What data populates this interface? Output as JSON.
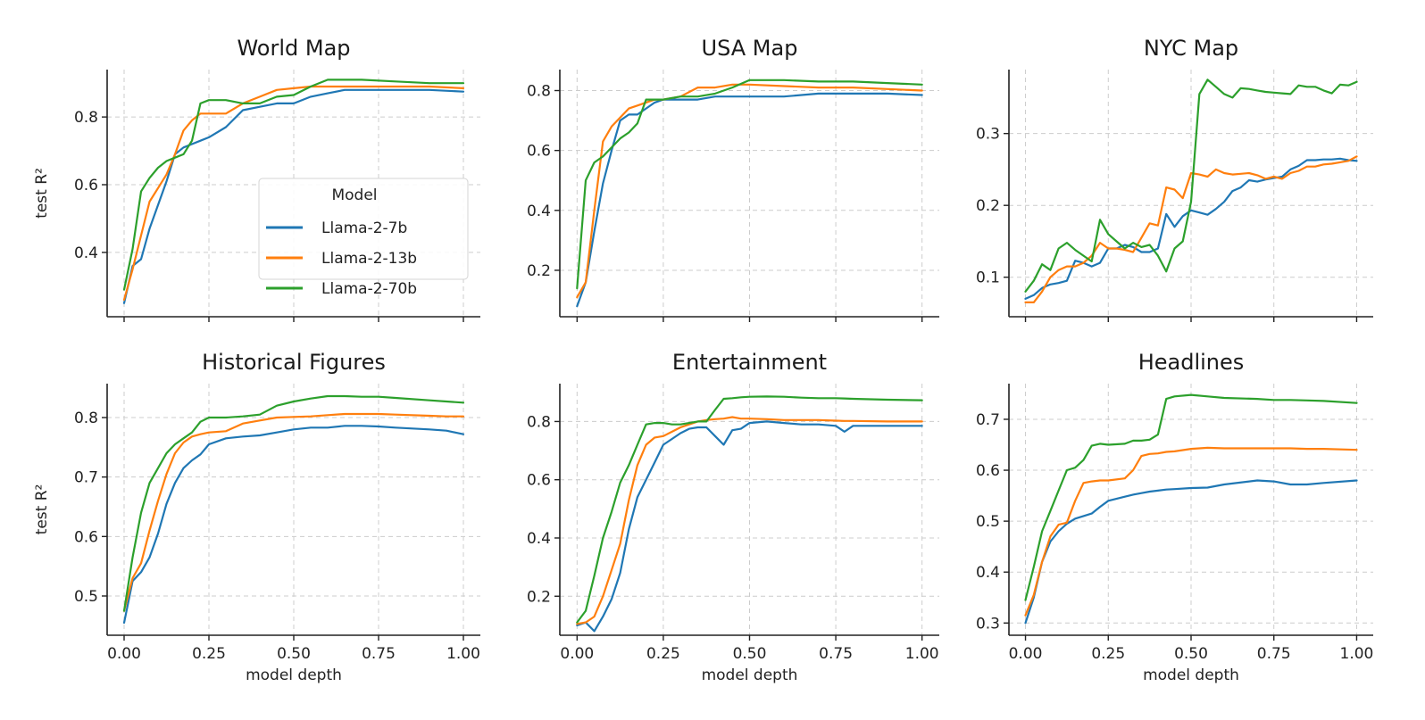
{
  "chart_data": {
    "type": "line",
    "legend": {
      "title": "Model",
      "placement": "lower-right of World Map panel",
      "entries": [
        {
          "name": "Llama-2-7b",
          "color": "#1f77b4"
        },
        {
          "name": "Llama-2-13b",
          "color": "#ff7f0e"
        },
        {
          "name": "Llama-2-70b",
          "color": "#2ca02c"
        }
      ]
    },
    "xlabel": "model depth",
    "ylabel": "test R²",
    "xlim": [
      -0.05,
      1.05
    ],
    "xticks": [
      0.0,
      0.25,
      0.5,
      0.75,
      1.0
    ],
    "xtick_labels": [
      "0.00",
      "0.25",
      "0.50",
      "0.75",
      "1.00"
    ],
    "grid": true,
    "panels": [
      {
        "title": "World Map",
        "ylim": [
          0.21,
          0.94
        ],
        "yticks": [
          0.4,
          0.6,
          0.8
        ],
        "ytick_labels": [
          "0.4",
          "0.6",
          "0.8"
        ],
        "show_ylabel": true,
        "show_xticklabels": false,
        "show_legend": true,
        "x": [
          0.0,
          0.025,
          0.05,
          0.075,
          0.1,
          0.125,
          0.15,
          0.175,
          0.2,
          0.225,
          0.25,
          0.3,
          0.35,
          0.4,
          0.45,
          0.5,
          0.55,
          0.6,
          0.65,
          0.7,
          0.8,
          0.9,
          1.0
        ],
        "series": [
          {
            "name": "Llama-2-7b",
            "values": [
              0.25,
              0.36,
              0.38,
              0.47,
              0.54,
              0.61,
              0.69,
              0.71,
              0.72,
              0.73,
              0.74,
              0.77,
              0.82,
              0.83,
              0.84,
              0.84,
              0.86,
              0.87,
              0.88,
              0.88,
              0.88,
              0.88,
              0.875
            ]
          },
          {
            "name": "Llama-2-13b",
            "values": [
              0.26,
              0.35,
              0.45,
              0.55,
              0.59,
              0.63,
              0.69,
              0.76,
              0.79,
              0.81,
              0.81,
              0.81,
              0.84,
              0.86,
              0.88,
              0.885,
              0.89,
              0.89,
              0.89,
              0.89,
              0.89,
              0.89,
              0.885
            ]
          },
          {
            "name": "Llama-2-70b",
            "values": [
              0.29,
              0.41,
              0.58,
              0.62,
              0.65,
              0.67,
              0.68,
              0.69,
              0.73,
              0.84,
              0.85,
              0.85,
              0.84,
              0.84,
              0.86,
              0.865,
              0.89,
              0.91,
              0.91,
              0.91,
              0.905,
              0.9,
              0.9
            ]
          }
        ]
      },
      {
        "title": "USA Map",
        "ylim": [
          0.045,
          0.87
        ],
        "yticks": [
          0.2,
          0.4,
          0.6,
          0.8
        ],
        "ytick_labels": [
          "0.2",
          "0.4",
          "0.6",
          "0.8"
        ],
        "show_ylabel": false,
        "show_xticklabels": false,
        "show_legend": false,
        "x": [
          0.0,
          0.025,
          0.05,
          0.075,
          0.1,
          0.125,
          0.15,
          0.175,
          0.2,
          0.225,
          0.25,
          0.3,
          0.35,
          0.4,
          0.45,
          0.5,
          0.6,
          0.7,
          0.8,
          0.9,
          1.0
        ],
        "series": [
          {
            "name": "Llama-2-7b",
            "values": [
              0.08,
              0.16,
              0.33,
              0.49,
              0.6,
              0.7,
              0.72,
              0.72,
              0.74,
              0.76,
              0.77,
              0.77,
              0.77,
              0.78,
              0.78,
              0.78,
              0.78,
              0.79,
              0.79,
              0.79,
              0.785
            ]
          },
          {
            "name": "Llama-2-13b",
            "values": [
              0.11,
              0.16,
              0.4,
              0.63,
              0.68,
              0.71,
              0.74,
              0.75,
              0.76,
              0.77,
              0.77,
              0.78,
              0.81,
              0.81,
              0.82,
              0.82,
              0.815,
              0.81,
              0.81,
              0.805,
              0.8
            ]
          },
          {
            "name": "Llama-2-70b",
            "values": [
              0.14,
              0.5,
              0.56,
              0.58,
              0.61,
              0.64,
              0.66,
              0.69,
              0.77,
              0.77,
              0.77,
              0.78,
              0.78,
              0.79,
              0.81,
              0.835,
              0.835,
              0.83,
              0.83,
              0.825,
              0.82
            ]
          }
        ]
      },
      {
        "title": "NYC Map",
        "ylim": [
          0.045,
          0.389
        ],
        "yticks": [
          0.1,
          0.2,
          0.3
        ],
        "ytick_labels": [
          "0.1",
          "0.2",
          "0.3"
        ],
        "show_ylabel": false,
        "show_xticklabels": false,
        "show_legend": false,
        "x": [
          0.0,
          0.025,
          0.05,
          0.075,
          0.1,
          0.125,
          0.15,
          0.175,
          0.2,
          0.225,
          0.25,
          0.275,
          0.3,
          0.325,
          0.35,
          0.375,
          0.4,
          0.425,
          0.45,
          0.475,
          0.5,
          0.525,
          0.55,
          0.575,
          0.6,
          0.625,
          0.65,
          0.675,
          0.7,
          0.725,
          0.75,
          0.775,
          0.8,
          0.825,
          0.85,
          0.875,
          0.9,
          0.925,
          0.95,
          0.975,
          1.0
        ],
        "series": [
          {
            "name": "Llama-2-7b",
            "values": [
              0.07,
              0.075,
              0.085,
              0.09,
              0.092,
              0.095,
              0.123,
              0.12,
              0.115,
              0.12,
              0.14,
              0.14,
              0.145,
              0.142,
              0.135,
              0.135,
              0.14,
              0.188,
              0.17,
              0.185,
              0.193,
              0.19,
              0.187,
              0.195,
              0.205,
              0.22,
              0.225,
              0.235,
              0.233,
              0.236,
              0.238,
              0.24,
              0.25,
              0.255,
              0.263,
              0.263,
              0.264,
              0.264,
              0.265,
              0.263,
              0.262
            ]
          },
          {
            "name": "Llama-2-13b",
            "values": [
              0.065,
              0.065,
              0.08,
              0.1,
              0.11,
              0.115,
              0.115,
              0.12,
              0.13,
              0.148,
              0.14,
              0.14,
              0.138,
              0.135,
              0.155,
              0.175,
              0.172,
              0.225,
              0.222,
              0.21,
              0.245,
              0.243,
              0.24,
              0.25,
              0.245,
              0.243,
              0.244,
              0.245,
              0.242,
              0.237,
              0.24,
              0.237,
              0.245,
              0.248,
              0.254,
              0.254,
              0.257,
              0.258,
              0.26,
              0.262,
              0.268
            ]
          },
          {
            "name": "Llama-2-70b",
            "values": [
              0.08,
              0.095,
              0.118,
              0.11,
              0.14,
              0.148,
              0.138,
              0.13,
              0.122,
              0.18,
              0.16,
              0.15,
              0.14,
              0.148,
              0.142,
              0.145,
              0.13,
              0.108,
              0.14,
              0.15,
              0.205,
              0.355,
              0.375,
              0.365,
              0.355,
              0.35,
              0.363,
              0.362,
              0.36,
              0.358,
              0.357,
              0.356,
              0.355,
              0.367,
              0.365,
              0.365,
              0.36,
              0.356,
              0.368,
              0.367,
              0.372
            ]
          }
        ]
      },
      {
        "title": "Historical Figures",
        "ylim": [
          0.434,
          0.857
        ],
        "yticks": [
          0.5,
          0.6,
          0.7,
          0.8
        ],
        "ytick_labels": [
          "0.5",
          "0.6",
          "0.7",
          "0.8"
        ],
        "show_ylabel": true,
        "show_xticklabels": true,
        "show_legend": false,
        "x": [
          0.0,
          0.025,
          0.05,
          0.075,
          0.1,
          0.125,
          0.15,
          0.175,
          0.2,
          0.225,
          0.25,
          0.3,
          0.35,
          0.4,
          0.45,
          0.5,
          0.55,
          0.6,
          0.65,
          0.7,
          0.75,
          0.8,
          0.9,
          0.95,
          1.0
        ],
        "series": [
          {
            "name": "Llama-2-7b",
            "values": [
              0.455,
              0.525,
              0.54,
              0.565,
              0.605,
              0.655,
              0.69,
              0.715,
              0.728,
              0.738,
              0.755,
              0.765,
              0.768,
              0.77,
              0.775,
              0.78,
              0.783,
              0.783,
              0.786,
              0.786,
              0.785,
              0.783,
              0.78,
              0.778,
              0.772
            ]
          },
          {
            "name": "Llama-2-13b",
            "values": [
              0.475,
              0.53,
              0.555,
              0.61,
              0.66,
              0.705,
              0.74,
              0.758,
              0.768,
              0.772,
              0.775,
              0.777,
              0.79,
              0.795,
              0.8,
              0.801,
              0.802,
              0.804,
              0.806,
              0.806,
              0.806,
              0.805,
              0.803,
              0.802,
              0.802
            ]
          },
          {
            "name": "Llama-2-70b",
            "values": [
              0.475,
              0.565,
              0.64,
              0.69,
              0.715,
              0.74,
              0.755,
              0.765,
              0.775,
              0.793,
              0.8,
              0.8,
              0.802,
              0.805,
              0.82,
              0.827,
              0.832,
              0.836,
              0.836,
              0.835,
              0.835,
              0.833,
              0.829,
              0.827,
              0.825
            ]
          }
        ]
      },
      {
        "title": "Entertainment",
        "ylim": [
          0.066,
          0.93
        ],
        "yticks": [
          0.2,
          0.4,
          0.6,
          0.8
        ],
        "ytick_labels": [
          "0.2",
          "0.4",
          "0.6",
          "0.8"
        ],
        "show_ylabel": false,
        "show_xticklabels": true,
        "show_legend": false,
        "x": [
          0.0,
          0.025,
          0.05,
          0.075,
          0.1,
          0.125,
          0.15,
          0.175,
          0.2,
          0.225,
          0.25,
          0.275,
          0.3,
          0.325,
          0.35,
          0.375,
          0.4,
          0.425,
          0.45,
          0.475,
          0.5,
          0.55,
          0.6,
          0.65,
          0.7,
          0.75,
          0.775,
          0.8,
          0.9,
          1.0
        ],
        "series": [
          {
            "name": "Llama-2-7b",
            "values": [
              0.1,
              0.11,
              0.08,
              0.13,
              0.19,
              0.28,
              0.43,
              0.54,
              0.6,
              0.66,
              0.72,
              0.74,
              0.76,
              0.775,
              0.78,
              0.78,
              0.75,
              0.72,
              0.77,
              0.775,
              0.795,
              0.8,
              0.795,
              0.79,
              0.79,
              0.785,
              0.765,
              0.785,
              0.785,
              0.785
            ]
          },
          {
            "name": "Llama-2-13b",
            "values": [
              0.105,
              0.11,
              0.13,
              0.2,
              0.29,
              0.38,
              0.53,
              0.65,
              0.72,
              0.745,
              0.75,
              0.765,
              0.78,
              0.79,
              0.8,
              0.805,
              0.808,
              0.81,
              0.815,
              0.81,
              0.81,
              0.808,
              0.805,
              0.805,
              0.805,
              0.803,
              0.802,
              0.802,
              0.8,
              0.8
            ]
          },
          {
            "name": "Llama-2-70b",
            "values": [
              0.11,
              0.15,
              0.27,
              0.4,
              0.49,
              0.59,
              0.65,
              0.72,
              0.79,
              0.795,
              0.795,
              0.79,
              0.79,
              0.795,
              0.8,
              0.8,
              0.84,
              0.878,
              0.88,
              0.883,
              0.885,
              0.886,
              0.885,
              0.882,
              0.88,
              0.88,
              0.879,
              0.878,
              0.875,
              0.873
            ]
          }
        ]
      },
      {
        "title": "Headlines",
        "ylim": [
          0.276,
          0.77
        ],
        "yticks": [
          0.3,
          0.4,
          0.5,
          0.6,
          0.7
        ],
        "ytick_labels": [
          "0.3",
          "0.4",
          "0.5",
          "0.6",
          "0.7"
        ],
        "show_ylabel": false,
        "show_xticklabels": true,
        "show_legend": false,
        "x": [
          0.0,
          0.025,
          0.05,
          0.075,
          0.1,
          0.125,
          0.15,
          0.175,
          0.2,
          0.225,
          0.25,
          0.3,
          0.325,
          0.35,
          0.375,
          0.4,
          0.425,
          0.45,
          0.5,
          0.55,
          0.6,
          0.7,
          0.75,
          0.8,
          0.85,
          0.9,
          1.0
        ],
        "series": [
          {
            "name": "Llama-2-7b",
            "values": [
              0.3,
              0.35,
              0.42,
              0.46,
              0.48,
              0.495,
              0.505,
              0.51,
              0.515,
              0.528,
              0.54,
              0.548,
              0.552,
              0.555,
              0.558,
              0.56,
              0.562,
              0.563,
              0.565,
              0.566,
              0.572,
              0.58,
              0.578,
              0.572,
              0.572,
              0.575,
              0.58
            ]
          },
          {
            "name": "Llama-2-13b",
            "values": [
              0.315,
              0.355,
              0.42,
              0.47,
              0.493,
              0.497,
              0.54,
              0.575,
              0.578,
              0.58,
              0.58,
              0.584,
              0.6,
              0.628,
              0.632,
              0.633,
              0.636,
              0.637,
              0.642,
              0.644,
              0.643,
              0.643,
              0.643,
              0.643,
              0.642,
              0.642,
              0.64
            ]
          },
          {
            "name": "Llama-2-70b",
            "values": [
              0.345,
              0.41,
              0.48,
              0.52,
              0.56,
              0.6,
              0.605,
              0.62,
              0.648,
              0.652,
              0.65,
              0.652,
              0.658,
              0.658,
              0.66,
              0.67,
              0.74,
              0.745,
              0.748,
              0.745,
              0.742,
              0.74,
              0.738,
              0.738,
              0.737,
              0.736,
              0.732
            ]
          }
        ]
      }
    ]
  }
}
